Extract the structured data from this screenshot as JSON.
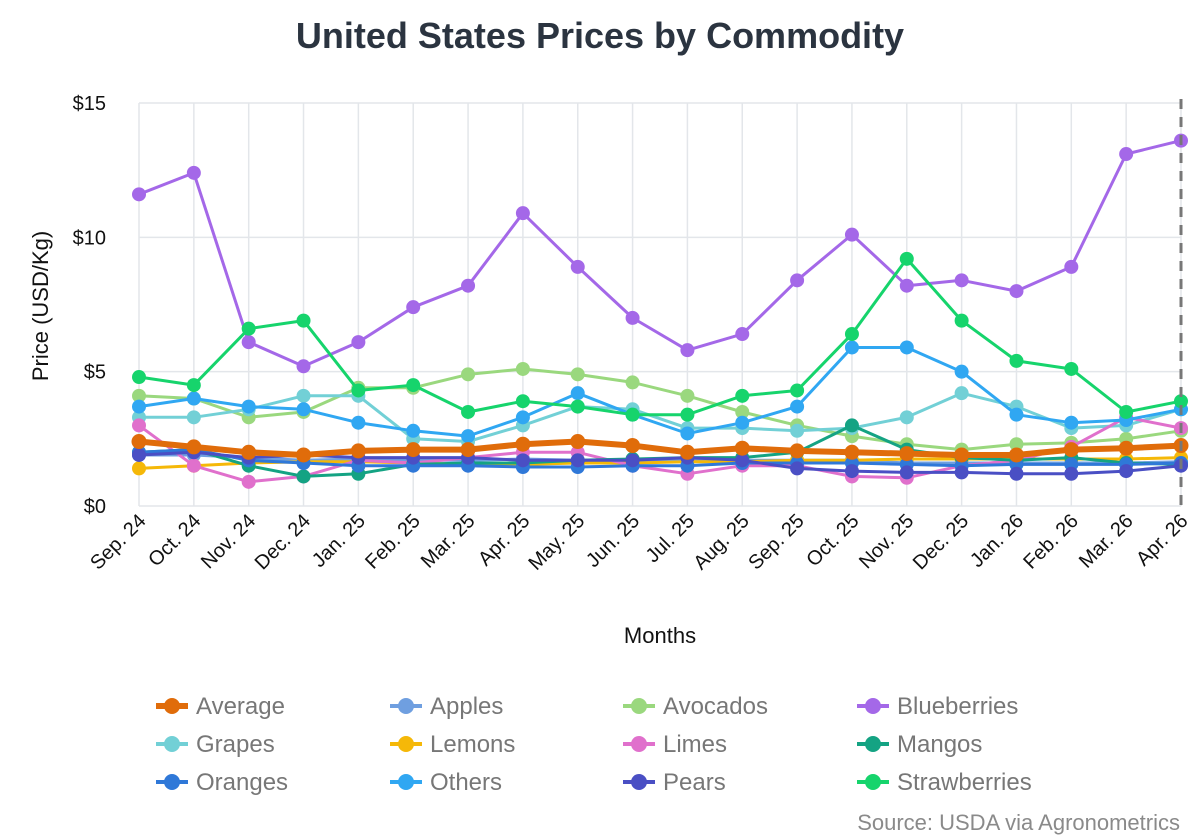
{
  "chart_data": {
    "type": "line",
    "title": "United States Prices by Commodity",
    "xlabel": "Months",
    "ylabel": "Price (USD/Kg)",
    "ylim": [
      0,
      15
    ],
    "y_ticks": [
      "$0",
      "$5",
      "$10",
      "$15"
    ],
    "grid": true,
    "legend_position": "bottom",
    "source": "Source: USDA via Agronometrics",
    "categories": [
      "Sep. 24",
      "Oct. 24",
      "Nov. 24",
      "Dec. 24",
      "Jan. 25",
      "Feb. 25",
      "Mar. 25",
      "Apr. 25",
      "May. 25",
      "Jun. 25",
      "Jul. 25",
      "Aug. 25",
      "Sep. 25",
      "Oct. 25",
      "Nov. 25",
      "Dec. 25",
      "Jan. 26",
      "Feb. 26",
      "Mar. 26",
      "Apr. 26"
    ],
    "series": [
      {
        "name": "Average",
        "color": "#e06c0a",
        "width": 6,
        "values": [
          2.4,
          2.2,
          2.0,
          1.9,
          2.05,
          2.1,
          2.1,
          2.3,
          2.4,
          2.25,
          2.0,
          2.15,
          2.05,
          2.0,
          1.95,
          1.9,
          1.9,
          2.1,
          2.15,
          2.25
        ]
      },
      {
        "name": "Apples",
        "color": "#6f9fe0",
        "width": 3,
        "values": [
          1.9,
          1.9,
          1.8,
          1.7,
          1.75,
          1.7,
          1.7,
          1.75,
          1.7,
          1.7,
          1.7,
          1.7,
          1.7,
          1.7,
          1.6,
          1.6,
          1.6,
          1.6,
          1.6,
          1.65
        ]
      },
      {
        "name": "Avocados",
        "color": "#9ad87e",
        "width": 3,
        "values": [
          4.1,
          4.0,
          3.3,
          3.5,
          4.4,
          4.4,
          4.9,
          5.1,
          4.9,
          4.6,
          4.1,
          3.5,
          3.0,
          2.6,
          2.3,
          2.1,
          2.3,
          2.35,
          2.5,
          2.8
        ]
      },
      {
        "name": "Blueberries",
        "color": "#a468e8",
        "width": 3,
        "values": [
          11.6,
          12.4,
          6.1,
          5.2,
          6.1,
          7.4,
          8.2,
          10.9,
          8.9,
          7.0,
          5.8,
          6.4,
          8.4,
          10.1,
          8.2,
          8.4,
          8.0,
          8.9,
          13.1,
          13.6
        ]
      },
      {
        "name": "Grapes",
        "color": "#72d0d6",
        "width": 3,
        "values": [
          3.3,
          3.3,
          3.6,
          4.1,
          4.1,
          2.5,
          2.4,
          3.0,
          3.7,
          3.6,
          2.9,
          2.9,
          2.8,
          2.9,
          3.3,
          4.2,
          3.7,
          2.9,
          3.0,
          3.6
        ]
      },
      {
        "name": "Lemons",
        "color": "#f5b808",
        "width": 3,
        "values": [
          1.4,
          1.5,
          1.6,
          1.65,
          1.65,
          1.6,
          1.55,
          1.55,
          1.6,
          1.6,
          1.65,
          1.65,
          1.7,
          1.7,
          1.75,
          1.75,
          1.75,
          1.75,
          1.75,
          1.8
        ]
      },
      {
        "name": "Limes",
        "color": "#e070cc",
        "width": 3,
        "values": [
          3.0,
          1.5,
          0.9,
          1.1,
          1.7,
          1.6,
          1.8,
          2.0,
          2.0,
          1.5,
          1.2,
          1.5,
          1.5,
          1.1,
          1.05,
          1.5,
          1.7,
          2.2,
          3.3,
          2.9
        ]
      },
      {
        "name": "Mangos",
        "color": "#14a383",
        "width": 3,
        "values": [
          2.0,
          2.1,
          1.5,
          1.1,
          1.2,
          1.55,
          1.6,
          1.6,
          1.7,
          1.75,
          1.8,
          1.8,
          2.0,
          3.0,
          2.1,
          1.8,
          1.7,
          1.8,
          1.6,
          1.55
        ]
      },
      {
        "name": "Oranges",
        "color": "#2f78d8",
        "width": 3,
        "values": [
          2.0,
          2.1,
          1.7,
          1.6,
          1.5,
          1.5,
          1.5,
          1.45,
          1.45,
          1.5,
          1.5,
          1.6,
          1.6,
          1.6,
          1.55,
          1.5,
          1.55,
          1.55,
          1.55,
          1.6
        ]
      },
      {
        "name": "Others",
        "color": "#30a7f2",
        "width": 3,
        "values": [
          3.7,
          4.0,
          3.7,
          3.6,
          3.1,
          2.8,
          2.6,
          3.3,
          4.2,
          3.4,
          2.7,
          3.1,
          3.7,
          5.9,
          5.9,
          5.0,
          3.4,
          3.1,
          3.2,
          3.6
        ]
      },
      {
        "name": "Pears",
        "color": "#4a4fc4",
        "width": 3,
        "values": [
          1.9,
          2.0,
          1.8,
          1.9,
          1.8,
          1.8,
          1.8,
          1.7,
          1.7,
          1.7,
          1.8,
          1.7,
          1.4,
          1.3,
          1.25,
          1.25,
          1.2,
          1.2,
          1.3,
          1.5
        ]
      },
      {
        "name": "Strawberries",
        "color": "#16d46c",
        "width": 3,
        "values": [
          4.8,
          4.5,
          6.6,
          6.9,
          4.3,
          4.5,
          3.5,
          3.9,
          3.7,
          3.4,
          3.4,
          4.1,
          4.3,
          6.4,
          9.2,
          6.9,
          5.4,
          5.1,
          3.5,
          3.9
        ]
      }
    ]
  }
}
